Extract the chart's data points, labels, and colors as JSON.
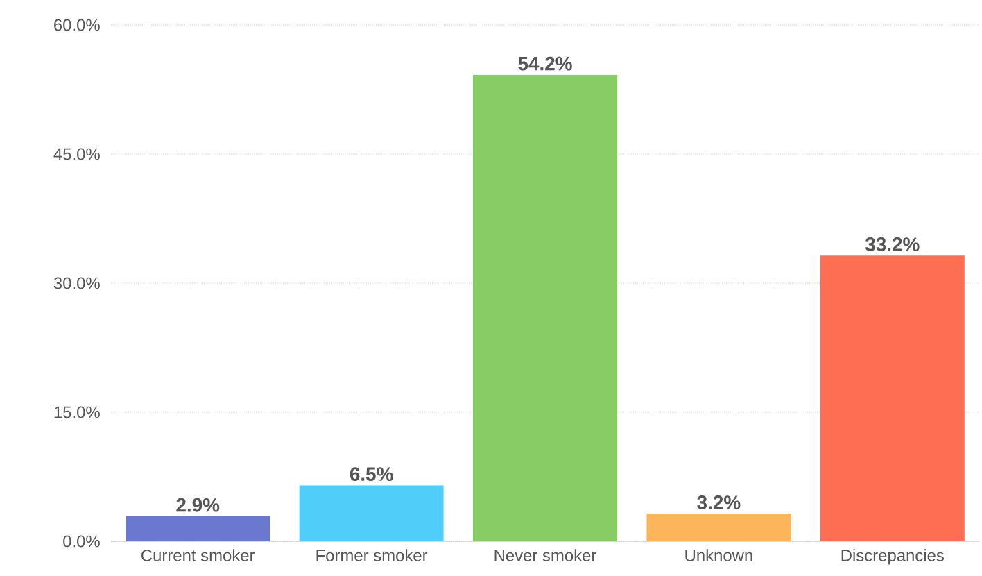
{
  "chart_data": {
    "type": "bar",
    "categories": [
      "Current smoker",
      "Former smoker",
      "Never smoker",
      "Unknown",
      "Discrepancies"
    ],
    "values": [
      2.9,
      6.5,
      54.2,
      3.2,
      33.2
    ],
    "value_labels": [
      "2.9%",
      "6.5%",
      "54.2%",
      "3.2%",
      "33.2%"
    ],
    "colors": [
      "#6b78d0",
      "#51cdfa",
      "#88cc66",
      "#fdb55c",
      "#fd6e52"
    ],
    "ylim": [
      0,
      60
    ],
    "yticks": [
      {
        "value": 0,
        "label": "0.0%"
      },
      {
        "value": 15,
        "label": "15.0%"
      },
      {
        "value": 30,
        "label": "30.0%"
      },
      {
        "value": 45,
        "label": "45.0%"
      },
      {
        "value": 60,
        "label": "60.0%"
      }
    ],
    "grid": "y"
  }
}
